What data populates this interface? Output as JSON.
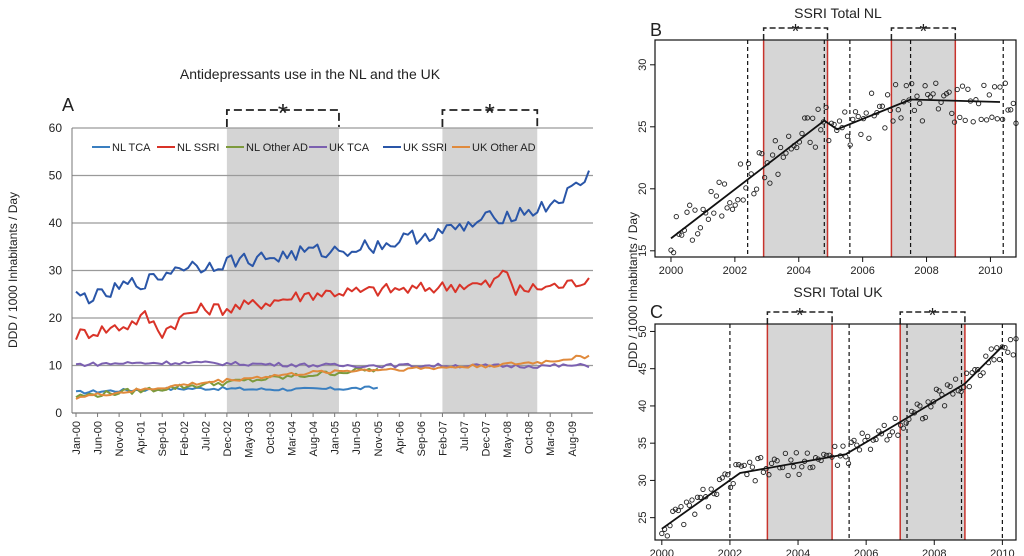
{
  "panelA": {
    "panel_label": "A",
    "title": "Antidepressants use in the NL and the UK",
    "ylabel": "DDD / 1000 Inhabitants / Day",
    "significance_marker": "*",
    "chart_data": {
      "type": "line",
      "title": "Antidepressants use in the NL and the UK",
      "xlabel": "",
      "ylabel": "DDD / 1000 Inhabitants / Day",
      "ylim": [
        0,
        60
      ],
      "yticks": [
        0,
        10,
        20,
        30,
        40,
        50,
        60
      ],
      "x_range_months": [
        "Jan-00",
        "Dec-09"
      ],
      "xtick_labels": [
        "Jan-00",
        "Jun-00",
        "Nov-00",
        "Apr-01",
        "Sep-01",
        "Feb-02",
        "Jul-02",
        "Dec-02",
        "May-03",
        "Oct-03",
        "Mar-04",
        "Aug-04",
        "Jan-05",
        "Jun-05",
        "Nov-05",
        "Apr-06",
        "Sep-06",
        "Feb-07",
        "Jul-07",
        "Dec-07",
        "May-08",
        "Oct-08",
        "Mar-09",
        "Aug-09"
      ],
      "shaded_periods": [
        [
          "Dec-02",
          "Feb-05"
        ],
        [
          "Jan-07",
          "Dec-08"
        ]
      ],
      "legend": [
        "NL TCA",
        "NL SSRI",
        "NL Other AD",
        "UK TCA",
        "UK SSRI",
        "UK Other AD"
      ],
      "series": [
        {
          "name": "NL TCA",
          "color": "#3a7fc0",
          "x_months": [
            0,
            6,
            12,
            18,
            24,
            30,
            36,
            42,
            48,
            54,
            60,
            66,
            70
          ],
          "values": [
            4.3,
            4.6,
            4.8,
            5.0,
            5.1,
            5.2,
            5.1,
            5.0,
            5.0,
            5.0,
            5.1,
            5.2,
            5.3
          ]
        },
        {
          "name": "NL SSRI",
          "color": "#d93328",
          "x_months": [
            0,
            6,
            12,
            16,
            20,
            26,
            30,
            36,
            42,
            48,
            54,
            60,
            66,
            72,
            78,
            84,
            90,
            96,
            100,
            102,
            108,
            114,
            119
          ],
          "values": [
            16.5,
            17.5,
            18.5,
            20.5,
            17,
            21,
            22,
            22,
            23,
            24,
            25,
            25.5,
            25.5,
            26,
            26,
            26.5,
            27,
            27,
            30,
            25.5,
            26.5,
            27,
            28.5
          ]
        },
        {
          "name": "NL Other AD",
          "color": "#7d9a3c",
          "x_months": [
            0,
            12,
            24,
            36,
            48,
            60,
            66,
            70
          ],
          "values": [
            3.5,
            4.5,
            5.5,
            6.5,
            7.5,
            8.5,
            9.0,
            9.2
          ]
        },
        {
          "name": "UK TCA",
          "color": "#7b60b0",
          "x_months": [
            0,
            12,
            24,
            36,
            48,
            60,
            72,
            84,
            96,
            108,
            119
          ],
          "values": [
            10.2,
            10.5,
            10.6,
            10.4,
            10.2,
            10.0,
            10.0,
            10.0,
            9.9,
            9.9,
            10.0
          ]
        },
        {
          "name": "UK SSRI",
          "color": "#2a56a8",
          "x_months": [
            0,
            6,
            12,
            18,
            24,
            30,
            36,
            42,
            48,
            54,
            60,
            66,
            72,
            78,
            84,
            90,
            96,
            102,
            108,
            114,
            119
          ],
          "values": [
            24.5,
            24.5,
            27,
            28,
            31,
            31,
            32,
            32.5,
            33,
            34,
            34,
            35,
            35.5,
            37,
            38,
            39,
            41,
            42,
            43,
            46,
            50
          ]
        },
        {
          "name": "UK Other AD",
          "color": "#e08a3c",
          "x_months": [
            0,
            12,
            24,
            36,
            48,
            60,
            72,
            84,
            96,
            108,
            119
          ],
          "values": [
            3.3,
            4.5,
            5.8,
            7.0,
            8.0,
            8.8,
            9.2,
            9.5,
            10.0,
            10.7,
            12.0
          ]
        }
      ]
    }
  },
  "panelB": {
    "panel_label": "B",
    "title": "SSRI Total NL",
    "significance_marker": "*",
    "chart_data": {
      "type": "scatter",
      "title": "SSRI Total NL",
      "xlim": [
        1999.5,
        2010.8
      ],
      "ylim": [
        14.5,
        32
      ],
      "xticks": [
        2000,
        2002,
        2004,
        2006,
        2008,
        2010
      ],
      "yticks": [
        15,
        20,
        25,
        30
      ],
      "trend_line": {
        "x": [
          2000,
          2004.8,
          2005.2,
          2007.5,
          2010.3
        ],
        "y": [
          16,
          25.5,
          24.8,
          27.2,
          27
        ]
      },
      "shaded_periods": [
        [
          2002.9,
          2004.9
        ],
        [
          2006.9,
          2008.9
        ]
      ],
      "dashed_lines_x": [
        2002.4,
        2004.8,
        2005.6,
        2007.5,
        2010.4
      ],
      "points": {
        "x_start": 2000,
        "x_end": 2010.8,
        "count": 130
      }
    }
  },
  "panelC": {
    "panel_label": "C",
    "title": "SSRI Total UK",
    "significance_marker": "*",
    "chart_data": {
      "type": "scatter",
      "title": "SSRI Total UK",
      "xlim": [
        1999.8,
        2010.4
      ],
      "ylim": [
        22,
        51
      ],
      "xticks": [
        2000,
        2002,
        2004,
        2006,
        2008,
        2010
      ],
      "yticks": [
        25,
        30,
        35,
        40,
        45,
        50
      ],
      "trend_line": {
        "x": [
          2000,
          2002.3,
          2005.4,
          2008.9,
          2010
        ],
        "y": [
          23.5,
          31,
          33.5,
          43,
          48
        ]
      },
      "shaded_periods": [
        [
          2003.1,
          2005
        ],
        [
          2007,
          2008.9
        ]
      ],
      "dashed_lines_x": [
        2002,
        2005.5,
        2007.2,
        2008.8,
        2010
      ],
      "points": {
        "x_start": 2000,
        "x_end": 2010.4,
        "count": 130
      }
    }
  },
  "shared": {
    "ylabel_right": "DDD / 1000 Inhabitants / Day"
  }
}
